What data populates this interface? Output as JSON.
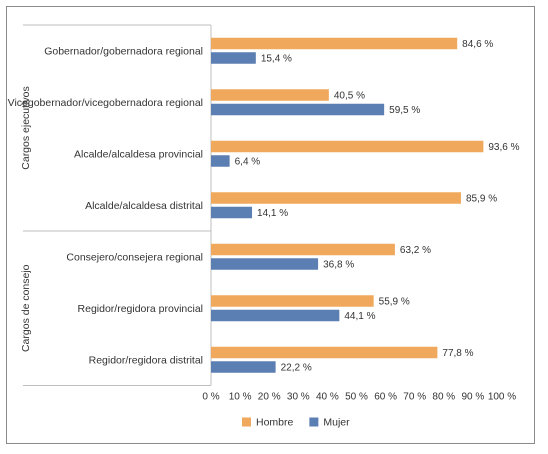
{
  "chart_data": {
    "type": "bar",
    "orientation": "horizontal",
    "categories": [
      "Gobernador/gobernadora regional",
      "Vicegobernador/vicegobernadora regional",
      "Alcalde/alcaldesa provincial",
      "Alcalde/alcaldesa distrital",
      "Consejero/consejera regional",
      "Regidor/regidora provincial",
      "Regidor/regidora distrital"
    ],
    "groups": [
      {
        "label": "Cargos ejecutivos",
        "count": 4
      },
      {
        "label": "Cargos de consejo",
        "count": 3
      }
    ],
    "series": [
      {
        "name": "Hombre",
        "color": "#F0A95C",
        "values": [
          84.6,
          40.5,
          93.6,
          85.9,
          63.2,
          55.9,
          77.8
        ],
        "labels": [
          "84,6 %",
          "40,5 %",
          "93,6 %",
          "85,9 %",
          "63,2 %",
          "55,9 %",
          "77,8 %"
        ]
      },
      {
        "name": "Mujer",
        "color": "#5B7FB3",
        "values": [
          15.4,
          59.5,
          6.4,
          14.1,
          36.8,
          44.1,
          22.2
        ],
        "labels": [
          "15,4 %",
          "59,5 %",
          "6,4 %",
          "14,1 %",
          "36,8 %",
          "44,1 %",
          "22,2 %"
        ]
      }
    ],
    "xlim": [
      0,
      100
    ],
    "xticks": [
      "0 %",
      "10 %",
      "20 %",
      "30 %",
      "40 %",
      "50 %",
      "60 %",
      "70 %",
      "80 %",
      "90 %",
      "100 %"
    ],
    "legend_position": "bottom",
    "grid": false
  }
}
